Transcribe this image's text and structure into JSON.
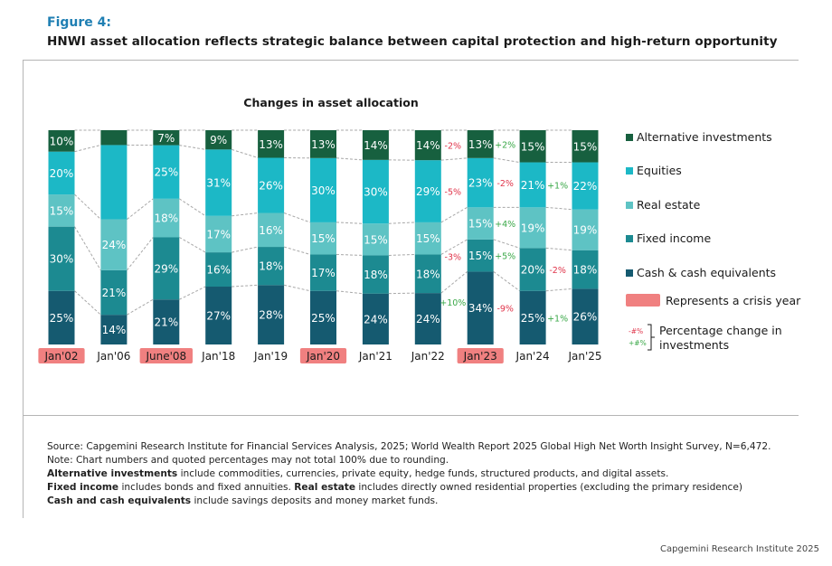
{
  "header": {
    "figure_label": "Figure 4:",
    "title": "HNWI asset allocation reflects strategic balance between capital protection and high-return opportunity"
  },
  "chart_data": {
    "type": "bar",
    "stacked": true,
    "title": "Changes in asset allocation",
    "categories": [
      "Jan'02",
      "Jan'06",
      "June'08",
      "Jan'18",
      "Jan'19",
      "Jan'20",
      "Jan'21",
      "Jan'22",
      "Jan'23",
      "Jan'24",
      "Jan'25"
    ],
    "crisis_years": [
      "Jan'02",
      "June'08",
      "Jan'20",
      "Jan'23"
    ],
    "series": [
      {
        "name": "Cash & cash equivalents",
        "color": "#155a70",
        "values": [
          25,
          14,
          21,
          27,
          28,
          25,
          24,
          24,
          34,
          25,
          26
        ]
      },
      {
        "name": "Fixed income",
        "color": "#1c8a91",
        "values": [
          30,
          21,
          29,
          16,
          18,
          17,
          18,
          18,
          15,
          20,
          18
        ]
      },
      {
        "name": "Real estate",
        "color": "#5ec3c4",
        "values": [
          15,
          24,
          18,
          17,
          16,
          15,
          15,
          15,
          15,
          19,
          19
        ]
      },
      {
        "name": "Equities",
        "color": "#1cb8c6",
        "values": [
          20,
          35,
          25,
          31,
          26,
          30,
          30,
          29,
          23,
          21,
          22
        ]
      },
      {
        "name": "Alternative investments",
        "color": "#17603f",
        "values": [
          10,
          7,
          7,
          9,
          13,
          13,
          14,
          14,
          13,
          15,
          15
        ]
      }
    ],
    "value_labels": [
      [
        "25%",
        "30%",
        "15%",
        "20%",
        "10%"
      ],
      [
        "14%",
        "21%",
        "24%",
        "",
        ""
      ],
      [
        "21%",
        "29%",
        "18%",
        "25%",
        "7%"
      ],
      [
        "27%",
        "16%",
        "17%",
        "31%",
        "9%"
      ],
      [
        "28%",
        "18%",
        "16%",
        "26%",
        "13%"
      ],
      [
        "25%",
        "17%",
        "15%",
        "30%",
        "13%"
      ],
      [
        "24%",
        "18%",
        "15%",
        "30%",
        "14%"
      ],
      [
        "24%",
        "18%",
        "15%",
        "29%",
        "14%"
      ],
      [
        "34%",
        "15%",
        "15%",
        "23%",
        "13%"
      ],
      [
        "25%",
        "20%",
        "19%",
        "21%",
        "15%"
      ],
      [
        "26%",
        "18%",
        "19%",
        "22%",
        "15%"
      ]
    ],
    "changes": [
      {
        "category": "Jan'22",
        "series": "Alternative investments",
        "text": "-2%",
        "dir": "neg"
      },
      {
        "category": "Jan'22",
        "series": "Equities",
        "text": "-5%",
        "dir": "neg"
      },
      {
        "category": "Jan'22",
        "series": "Fixed income",
        "text": "-3%",
        "dir": "neg"
      },
      {
        "category": "Jan'22",
        "series": "Cash & cash equivalents",
        "text": "+10%",
        "dir": "pos"
      },
      {
        "category": "Jan'23",
        "series": "Alternative investments",
        "text": "+2%",
        "dir": "pos"
      },
      {
        "category": "Jan'23",
        "series": "Equities",
        "text": "-2%",
        "dir": "neg"
      },
      {
        "category": "Jan'23",
        "series": "Real estate",
        "text": "+4%",
        "dir": "pos"
      },
      {
        "category": "Jan'23",
        "series": "Fixed income",
        "text": "+5%",
        "dir": "pos"
      },
      {
        "category": "Jan'23",
        "series": "Cash & cash equivalents",
        "text": "-9%",
        "dir": "neg"
      },
      {
        "category": "Jan'24",
        "series": "Equities",
        "text": "+1%",
        "dir": "pos"
      },
      {
        "category": "Jan'24",
        "series": "Fixed income",
        "text": "-2%",
        "dir": "neg"
      },
      {
        "category": "Jan'24",
        "series": "Cash & cash equivalents",
        "text": "+1%",
        "dir": "pos"
      }
    ],
    "legend": {
      "items": [
        "Alternative investments",
        "Equities",
        "Real estate",
        "Fixed income",
        "Cash & cash equivalents"
      ],
      "crisis_label": "Represents a crisis year",
      "change_label_line1": "Percentage change in",
      "change_label_line2": "investments",
      "neg_symbol": "-#%",
      "pos_symbol": "+#%",
      "placement": "right"
    },
    "colors": {
      "negative": "#e0354b",
      "positive": "#3aa848",
      "crisis": "#f08080",
      "connector": "#a8a8a8"
    }
  },
  "notes": {
    "source": "Source: Capgemini Research Institute for Financial Services Analysis, 2025; World Wealth Report 2025 Global High Net Worth Insight Survey, N=6,472.",
    "note": "Note: Chart numbers and quoted percentages may not total 100% due to rounding.",
    "alt_term": "Alternative investments",
    "alt_def": " include commodities, currencies, private equity, hedge funds, structured products, and digital assets.",
    "fixed_term": "Fixed income",
    "fixed_def": " includes bonds and fixed annuities. ",
    "real_term": "Real estate",
    "real_def": " includes directly owned residential properties (excluding the primary residence)",
    "cash_term": "Cash and cash equivalents",
    "cash_def": " include savings deposits and money market funds."
  },
  "footer": {
    "credit": "Capgemini Research Institute 2025"
  }
}
